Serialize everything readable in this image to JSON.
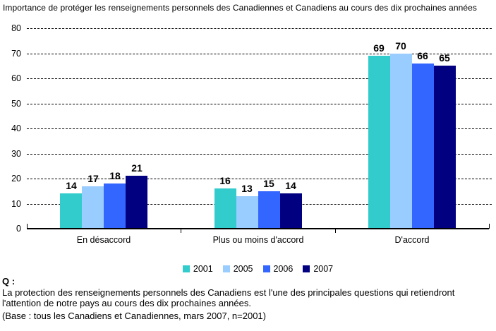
{
  "chart_data": {
    "type": "bar",
    "title": "Importance de protéger les renseignements personnels des Canadiennes et Canadiens au cours des dix prochaines années",
    "categories": [
      "En désaccord",
      "Plus ou moins d'accord",
      "D'accord"
    ],
    "series": [
      {
        "name": "2001",
        "color": "#33CCCC",
        "values": [
          14,
          16,
          69
        ]
      },
      {
        "name": "2005",
        "color": "#99CCFF",
        "values": [
          17,
          13,
          70
        ]
      },
      {
        "name": "2006",
        "color": "#3366FF",
        "values": [
          18,
          15,
          66
        ]
      },
      {
        "name": "2007",
        "color": "#000080",
        "values": [
          21,
          14,
          65
        ]
      }
    ],
    "ylim": [
      0,
      80
    ],
    "yticks": [
      0,
      10,
      20,
      30,
      40,
      50,
      60,
      70,
      80
    ],
    "grid": "horizontal-dashed",
    "legend_position": "bottom-center",
    "data_labels": true,
    "axis_color": "#000000"
  },
  "footer": {
    "q_label": "Q :",
    "question_line1": "La protection des renseignements personnels des Canadiens est l'une des principales questions qui retiendront",
    "question_line2": "l'attention de notre pays au cours des dix prochaines années.",
    "base_line": "(Base : tous les Canadiens et Canadiennes, mars 2007, n=2001)"
  }
}
